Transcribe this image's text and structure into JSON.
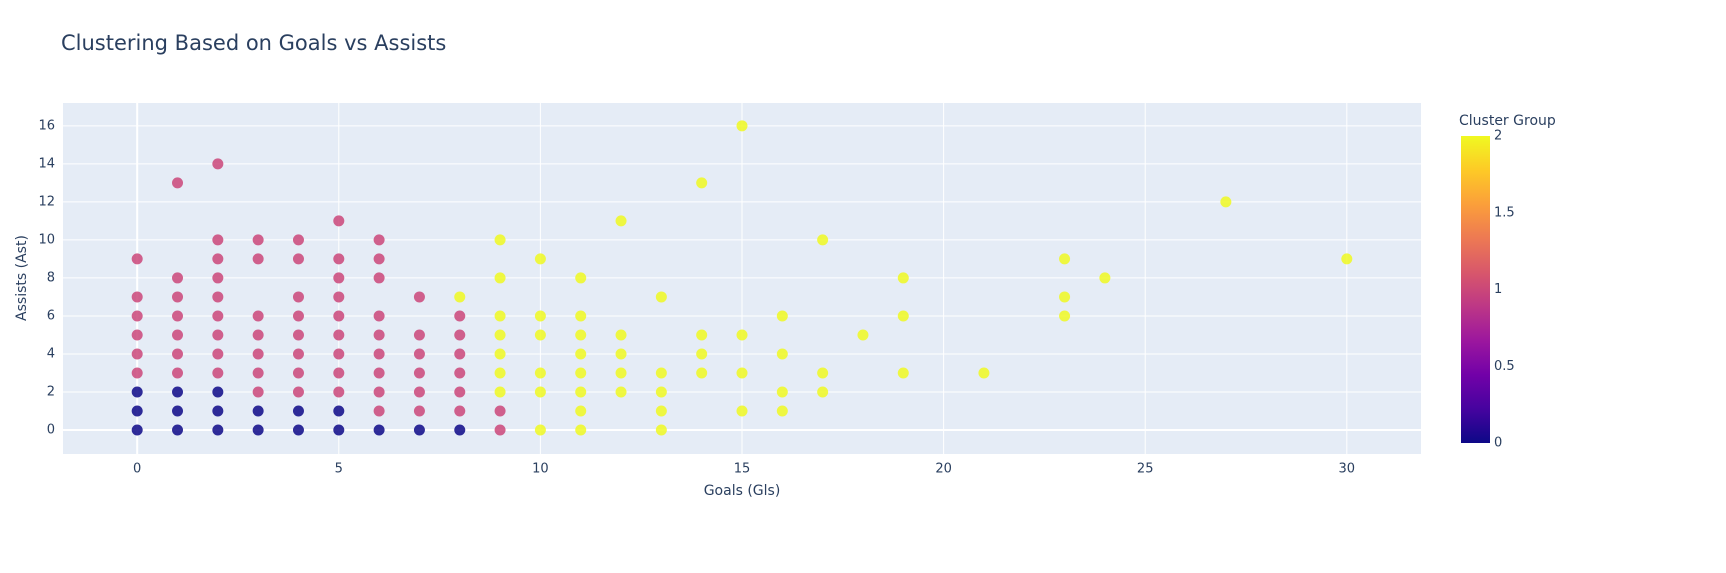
{
  "chart_data": {
    "type": "scatter",
    "title": "Clustering Based on Goals vs Assists",
    "x_label": "Goals (Gls)",
    "y_label": "Assists (Ast)",
    "colorbar_title": "Cluster Group",
    "x": [
      0,
      0,
      0,
      0,
      0,
      0,
      0,
      0,
      0,
      1,
      1,
      1,
      1,
      1,
      1,
      1,
      1,
      1,
      1,
      2,
      2,
      2,
      2,
      2,
      2,
      2,
      2,
      2,
      2,
      2,
      2,
      3,
      3,
      3,
      3,
      3,
      3,
      3,
      3,
      3,
      4,
      4,
      4,
      4,
      4,
      4,
      4,
      4,
      4,
      4,
      5,
      5,
      5,
      5,
      5,
      5,
      5,
      5,
      5,
      5,
      5,
      6,
      6,
      6,
      6,
      6,
      6,
      6,
      6,
      6,
      6,
      7,
      7,
      7,
      7,
      7,
      7,
      7,
      8,
      8,
      8,
      8,
      8,
      8,
      8,
      8,
      9,
      9,
      9,
      9,
      9,
      9,
      9,
      9,
      9,
      10,
      10,
      10,
      10,
      10,
      10,
      11,
      11,
      11,
      11,
      11,
      11,
      11,
      11,
      12,
      12,
      12,
      12,
      12,
      13,
      13,
      13,
      13,
      13,
      14,
      14,
      14,
      14,
      15,
      15,
      15,
      15,
      16,
      16,
      16,
      16,
      17,
      17,
      17,
      18,
      19,
      19,
      19,
      21,
      23,
      23,
      23,
      24,
      27,
      30
    ],
    "y": [
      0,
      1,
      2,
      3,
      4,
      5,
      6,
      7,
      9,
      0,
      1,
      2,
      3,
      4,
      5,
      6,
      7,
      8,
      13,
      0,
      1,
      2,
      3,
      4,
      5,
      6,
      7,
      8,
      9,
      10,
      14,
      0,
      1,
      2,
      3,
      4,
      5,
      6,
      9,
      10,
      0,
      1,
      2,
      3,
      4,
      5,
      6,
      7,
      9,
      10,
      0,
      1,
      2,
      3,
      4,
      5,
      6,
      7,
      8,
      9,
      11,
      0,
      1,
      2,
      3,
      4,
      5,
      6,
      8,
      9,
      10,
      0,
      1,
      2,
      3,
      4,
      5,
      7,
      0,
      1,
      2,
      3,
      4,
      5,
      6,
      7,
      0,
      1,
      2,
      3,
      4,
      5,
      6,
      8,
      10,
      0,
      2,
      3,
      5,
      6,
      9,
      0,
      1,
      2,
      3,
      4,
      5,
      6,
      8,
      2,
      3,
      4,
      5,
      11,
      0,
      1,
      2,
      3,
      7,
      3,
      4,
      5,
      13,
      1,
      3,
      5,
      16,
      1,
      2,
      4,
      6,
      2,
      3,
      10,
      5,
      3,
      6,
      8,
      3,
      6,
      7,
      9,
      8,
      12,
      9
    ],
    "cluster": [
      0,
      0,
      0,
      1,
      1,
      1,
      1,
      1,
      1,
      0,
      0,
      0,
      1,
      1,
      1,
      1,
      1,
      1,
      1,
      0,
      0,
      0,
      1,
      1,
      1,
      1,
      1,
      1,
      1,
      1,
      1,
      0,
      0,
      1,
      1,
      1,
      1,
      1,
      1,
      1,
      0,
      0,
      1,
      1,
      1,
      1,
      1,
      1,
      1,
      1,
      0,
      0,
      1,
      1,
      1,
      1,
      1,
      1,
      1,
      1,
      1,
      0,
      1,
      1,
      1,
      1,
      1,
      1,
      1,
      1,
      1,
      0,
      1,
      1,
      1,
      1,
      1,
      1,
      0,
      1,
      1,
      1,
      1,
      1,
      1,
      2,
      1,
      1,
      2,
      2,
      2,
      2,
      2,
      2,
      2,
      2,
      2,
      2,
      2,
      2,
      2,
      2,
      2,
      2,
      2,
      2,
      2,
      2,
      2,
      2,
      2,
      2,
      2,
      2,
      2,
      2,
      2,
      2,
      2,
      2,
      2,
      2,
      2,
      2,
      2,
      2,
      2,
      2,
      2,
      2,
      2,
      2,
      2,
      2,
      2,
      2,
      2,
      2,
      2,
      2,
      2,
      2,
      2,
      2,
      2
    ],
    "colorscale": [
      "#0d0887",
      "#46039f",
      "#7201a8",
      "#9c179e",
      "#bd3786",
      "#d8576b",
      "#ed7953",
      "#fb9f3a",
      "#fdca26",
      "#f0f921"
    ],
    "clim": [
      0,
      2
    ],
    "cticks": [
      0,
      0.5,
      1,
      1.5,
      2
    ],
    "xlim": [
      -1.84,
      31.84
    ],
    "xticks": [
      0,
      5,
      10,
      15,
      20,
      25,
      30
    ],
    "ylim": [
      -1.26,
      17.2
    ],
    "yticks": [
      0,
      2,
      4,
      6,
      8,
      10,
      12,
      14,
      16
    ],
    "grid": true
  }
}
